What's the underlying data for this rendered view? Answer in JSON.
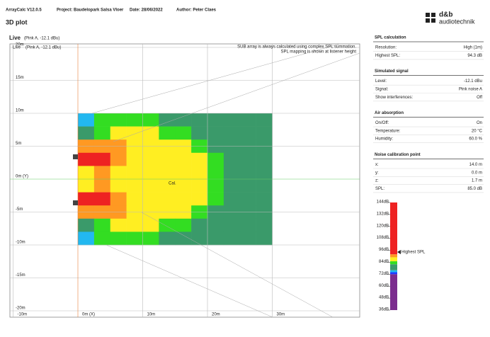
{
  "header": {
    "app": "ArrayCalc V12.0.5",
    "project": "Project: Baudelopark Salsa Vloer",
    "date": "Date: 28/06/2022",
    "author": "Author: Peter Claes",
    "logo": "d&b",
    "logo_sub": "audiotechnik",
    "page_title": "3D plot"
  },
  "plot": {
    "title": "Live",
    "subtitle": "(Pink A, -12.1 dBu)",
    "inner_title": "Live",
    "inner_subtitle": "(Pink A, -12.1 dBu)",
    "note1": "SUB array is always calculated using complex SPL summation.",
    "note2": "SPL mapping is shown at listener height",
    "cal_label": "Cal.",
    "xticks": [
      {
        "value": -10,
        "label": "-10m"
      },
      {
        "value": 0,
        "label": "0m (X)"
      },
      {
        "value": 10,
        "label": "10m"
      },
      {
        "value": 20,
        "label": "20m"
      },
      {
        "value": 30,
        "label": "30m"
      }
    ],
    "yticks": [
      {
        "value": 20,
        "label": "20m"
      },
      {
        "value": 15,
        "label": "15m"
      },
      {
        "value": 10,
        "label": "10m"
      },
      {
        "value": 5,
        "label": "5m"
      },
      {
        "value": 0,
        "label": "0m (Y)"
      },
      {
        "value": -5,
        "label": "-5m"
      },
      {
        "value": -10,
        "label": "-10m"
      },
      {
        "value": -15,
        "label": "-15m"
      },
      {
        "value": -20,
        "label": "-20m"
      }
    ]
  },
  "heatmap": {
    "xlim": [
      0,
      30
    ],
    "ylim": [
      -10,
      10
    ],
    "values": [
      [
        74,
        82,
        83,
        83,
        83,
        81,
        81,
        80,
        80,
        79,
        79,
        78
      ],
      [
        78,
        84,
        86,
        86,
        85,
        84,
        82,
        81,
        80,
        80,
        79,
        79
      ],
      [
        90,
        91,
        89,
        88,
        87,
        86,
        85,
        83,
        81,
        80,
        80,
        79
      ],
      [
        95,
        93,
        90,
        88,
        87,
        86,
        86,
        85,
        83,
        81,
        80,
        79
      ],
      [
        88,
        89,
        88,
        87,
        87,
        86,
        86,
        85,
        84,
        81,
        80,
        79
      ],
      [
        88,
        89,
        88,
        87,
        87,
        86,
        86,
        85,
        84,
        81,
        80,
        79
      ],
      [
        95,
        93,
        90,
        88,
        87,
        86,
        86,
        85,
        83,
        81,
        80,
        79
      ],
      [
        90,
        91,
        89,
        88,
        87,
        86,
        85,
        83,
        81,
        80,
        80,
        79
      ],
      [
        78,
        84,
        86,
        86,
        85,
        84,
        82,
        81,
        80,
        80,
        79,
        79
      ],
      [
        74,
        82,
        83,
        83,
        83,
        81,
        81,
        80,
        80,
        79,
        79,
        78
      ]
    ]
  },
  "colorbar": {
    "ticks": [
      {
        "value": 144,
        "label": "144dB"
      },
      {
        "value": 132,
        "label": "132dB"
      },
      {
        "value": 120,
        "label": "120dB"
      },
      {
        "value": 108,
        "label": "108dB"
      },
      {
        "value": 96,
        "label": "96dB"
      },
      {
        "value": 84,
        "label": "84dB"
      },
      {
        "value": 72,
        "label": "72dB"
      },
      {
        "value": 60,
        "label": "60dB"
      },
      {
        "value": 48,
        "label": "48dB"
      },
      {
        "value": 36,
        "label": "36dB"
      }
    ],
    "scale": [
      {
        "from": 36,
        "color": "#7b2d8e"
      },
      {
        "from": 72,
        "color": "#1e3cff"
      },
      {
        "from": 74,
        "color": "#22b8f0"
      },
      {
        "from": 76,
        "color": "#3a9a6a"
      },
      {
        "from": 82,
        "color": "#33dd22"
      },
      {
        "from": 85,
        "color": "#ffee22"
      },
      {
        "from": 89,
        "color": "#ff9922"
      },
      {
        "from": 92,
        "color": "#ee2222"
      }
    ],
    "marker": {
      "value": 94.3,
      "label": "Highest SPL"
    }
  },
  "panel": [
    {
      "title": "SPL calculation",
      "rows": [
        [
          "Resolution:",
          "High (1m)"
        ],
        [
          "Highest SPL:",
          "94.3 dB"
        ]
      ]
    },
    {
      "title": "Simulated signal",
      "rows": [
        [
          "Level:",
          "-12.1 dBu"
        ],
        [
          "Signal:",
          "Pink noise A"
        ],
        [
          "Show interferences:",
          "Off"
        ]
      ]
    },
    {
      "title": "Air absorption",
      "rows": [
        [
          "On/Off:",
          "On"
        ],
        [
          "Temperature:",
          "20 °C"
        ],
        [
          "Humidity:",
          "60.0 %"
        ]
      ]
    },
    {
      "title": "Noise calibration point",
      "rows": [
        [
          "x:",
          "14.0 m"
        ],
        [
          "y:",
          "0.0 m"
        ],
        [
          "z:",
          "1.7 m"
        ],
        [
          "SPL:",
          "85.0 dB"
        ]
      ]
    }
  ]
}
